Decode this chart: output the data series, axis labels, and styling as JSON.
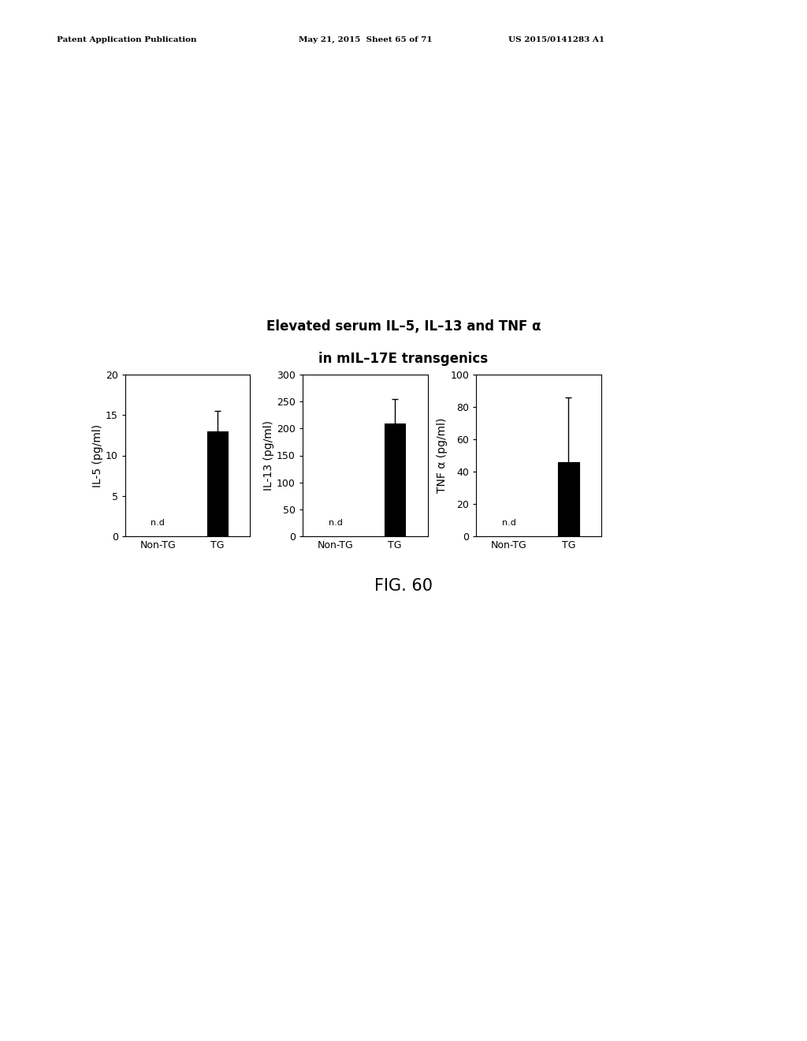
{
  "title_line1": "Elevated serum IL–5, IL–13 and TNF α",
  "title_line2": "in mIL–17E transgenics",
  "header_left": "Patent Application Publication",
  "header_mid": "May 21, 2015  Sheet 65 of 71",
  "header_right": "US 2015/0141283 A1",
  "figure_label": "FIG. 60",
  "subplots": [
    {
      "ylabel": "IL-5 (pg/ml)",
      "ylim": [
        0,
        20
      ],
      "yticks": [
        0,
        5,
        10,
        15,
        20
      ],
      "categories": [
        "Non-TG",
        "TG"
      ],
      "bar_values": [
        0,
        13.0
      ],
      "nd_label": "n.d",
      "nd_bar_index": 0,
      "error_bar_value": 2.5,
      "error_bar_index": 1
    },
    {
      "ylabel": "IL-13 (pg/ml)",
      "ylim": [
        0,
        300
      ],
      "yticks": [
        0,
        50,
        100,
        150,
        200,
        250,
        300
      ],
      "categories": [
        "Non-TG",
        "TG"
      ],
      "bar_values": [
        0,
        210.0
      ],
      "nd_label": "n.d",
      "nd_bar_index": 0,
      "error_bar_value": 45.0,
      "error_bar_index": 1
    },
    {
      "ylabel": "TNF α (pg/ml)",
      "ylim": [
        0,
        100
      ],
      "yticks": [
        0,
        20,
        40,
        60,
        80,
        100
      ],
      "categories": [
        "Non-TG",
        "TG"
      ],
      "bar_values": [
        0,
        46.0
      ],
      "nd_label": "n.d",
      "nd_bar_index": 0,
      "error_bar_value": 40.0,
      "error_bar_index": 1
    }
  ],
  "bg_color": "#ffffff",
  "bar_width": 0.35,
  "title_fontsize": 12,
  "axis_label_fontsize": 10,
  "tick_fontsize": 9,
  "xlabel_fontsize": 9,
  "nd_fontsize": 8,
  "fig_label_fontsize": 15
}
